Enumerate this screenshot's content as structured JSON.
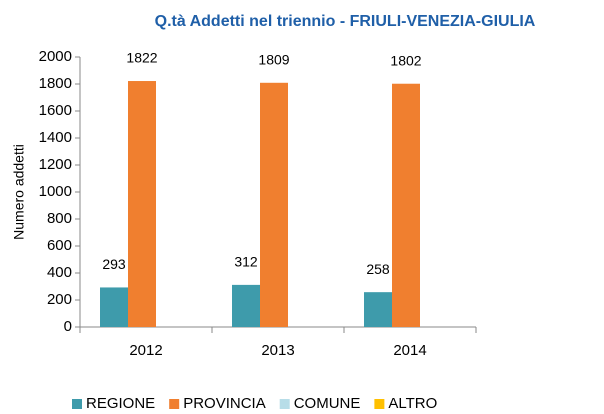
{
  "chart_data": {
    "type": "bar",
    "title": "Q.tà Addetti nel triennio - FRIULI-VENEZIA-GIULIA",
    "ylabel": "Numero addetti",
    "categories": [
      "2012",
      "2013",
      "2014"
    ],
    "series": [
      {
        "name": "REGIONE",
        "color": "#3e9bab",
        "values": [
          293,
          312,
          258
        ],
        "data_labels": true
      },
      {
        "name": "PROVINCIA",
        "color": "#f07f2f",
        "values": [
          1822,
          1809,
          1802
        ],
        "data_labels": true
      },
      {
        "name": "COMUNE",
        "color": "#b7dde8",
        "values": [
          0,
          0,
          0
        ],
        "data_labels": false
      },
      {
        "name": "ALTRO",
        "color": "#ffc000",
        "values": [
          0,
          0,
          0
        ],
        "data_labels": false
      }
    ],
    "ylim": [
      0,
      2000
    ],
    "yticks": [
      0,
      200,
      400,
      600,
      800,
      1000,
      1200,
      1400,
      1600,
      1800,
      2000
    ],
    "grid": false,
    "legend": "bottom"
  }
}
